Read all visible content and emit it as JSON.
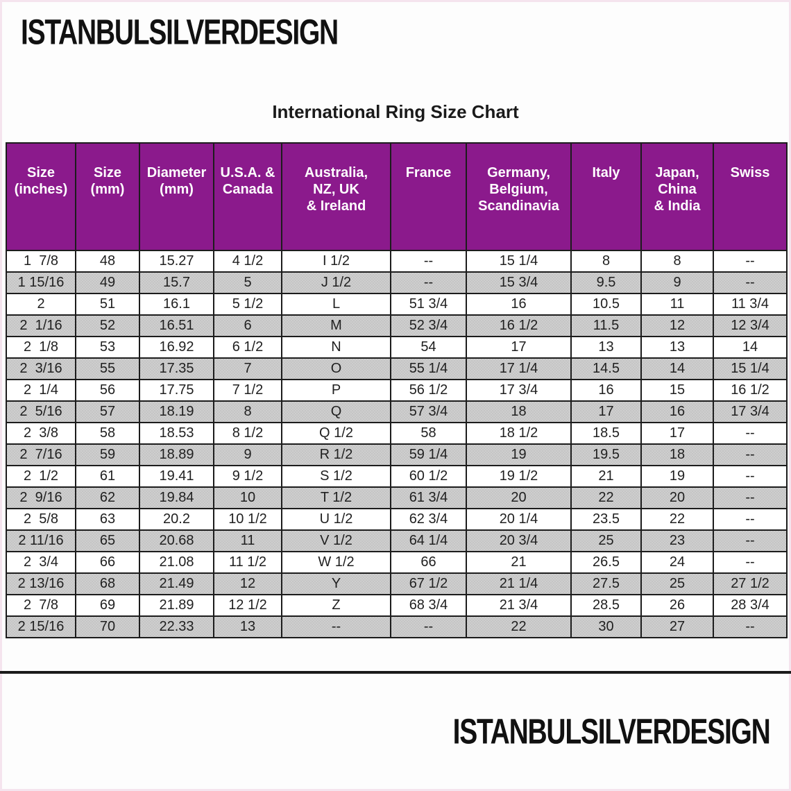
{
  "brand": {
    "top_text": "ISTANBULSILVERDESIGN",
    "bottom_text": "ISTANBULSILVERDESIGN"
  },
  "title": "International Ring Size Chart",
  "colors": {
    "header_background": "#8b1a8c",
    "header_text": "#ffffff",
    "stripe_gray": "#c9c9c9",
    "border": "#1c1c1c",
    "text": "#1f1f1f"
  },
  "chart_data": {
    "type": "table",
    "title": "International Ring Size Chart",
    "headers": [
      "Size\n(inches)",
      "Size\n(mm)",
      "Diameter\n(mm)",
      "U.S.A. &\nCanada",
      "Australia,\nNZ, UK\n& Ireland",
      "France",
      "Germany,\nBelgium,\nScandinavia",
      "Italy",
      "Japan,\nChina\n& India",
      "Swiss"
    ],
    "rows": [
      [
        "1  7/8",
        "48",
        "15.27",
        "4 1/2",
        "I 1/2",
        "--",
        "15 1/4",
        "8",
        "8",
        "--"
      ],
      [
        "1 15/16",
        "49",
        "15.7",
        "5",
        "J 1/2",
        "--",
        "15 3/4",
        "9.5",
        "9",
        "--"
      ],
      [
        "2",
        "51",
        "16.1",
        "5 1/2",
        "L",
        "51 3/4",
        "16",
        "10.5",
        "11",
        "11 3/4"
      ],
      [
        "2  1/16",
        "52",
        "16.51",
        "6",
        "M",
        "52 3/4",
        "16 1/2",
        "11.5",
        "12",
        "12 3/4"
      ],
      [
        "2  1/8",
        "53",
        "16.92",
        "6 1/2",
        "N",
        "54",
        "17",
        "13",
        "13",
        "14"
      ],
      [
        "2  3/16",
        "55",
        "17.35",
        "7",
        "O",
        "55 1/4",
        "17 1/4",
        "14.5",
        "14",
        "15 1/4"
      ],
      [
        "2  1/4",
        "56",
        "17.75",
        "7 1/2",
        "P",
        "56 1/2",
        "17 3/4",
        "16",
        "15",
        "16 1/2"
      ],
      [
        "2  5/16",
        "57",
        "18.19",
        "8",
        "Q",
        "57 3/4",
        "18",
        "17",
        "16",
        "17 3/4"
      ],
      [
        "2  3/8",
        "58",
        "18.53",
        "8 1/2",
        "Q 1/2",
        "58",
        "18 1/2",
        "18.5",
        "17",
        "--"
      ],
      [
        "2  7/16",
        "59",
        "18.89",
        "9",
        "R 1/2",
        "59 1/4",
        "19",
        "19.5",
        "18",
        "--"
      ],
      [
        "2  1/2",
        "61",
        "19.41",
        "9 1/2",
        "S 1/2",
        "60 1/2",
        "19 1/2",
        "21",
        "19",
        "--"
      ],
      [
        "2  9/16",
        "62",
        "19.84",
        "10",
        "T 1/2",
        "61 3/4",
        "20",
        "22",
        "20",
        "--"
      ],
      [
        "2  5/8",
        "63",
        "20.2",
        "10 1/2",
        "U 1/2",
        "62 3/4",
        "20 1/4",
        "23.5",
        "22",
        "--"
      ],
      [
        "2 11/16",
        "65",
        "20.68",
        "11",
        "V 1/2",
        "64 1/4",
        "20 3/4",
        "25",
        "23",
        "--"
      ],
      [
        "2  3/4",
        "66",
        "21.08",
        "11 1/2",
        "W 1/2",
        "66",
        "21",
        "26.5",
        "24",
        "--"
      ],
      [
        "2 13/16",
        "68",
        "21.49",
        "12",
        "Y",
        "67 1/2",
        "21 1/4",
        "27.5",
        "25",
        "27 1/2"
      ],
      [
        "2  7/8",
        "69",
        "21.89",
        "12 1/2",
        "Z",
        "68 3/4",
        "21 3/4",
        "28.5",
        "26",
        "28 3/4"
      ],
      [
        "2 15/16",
        "70",
        "22.33",
        "13",
        "--",
        "--",
        "22",
        "30",
        "27",
        "--"
      ]
    ]
  }
}
